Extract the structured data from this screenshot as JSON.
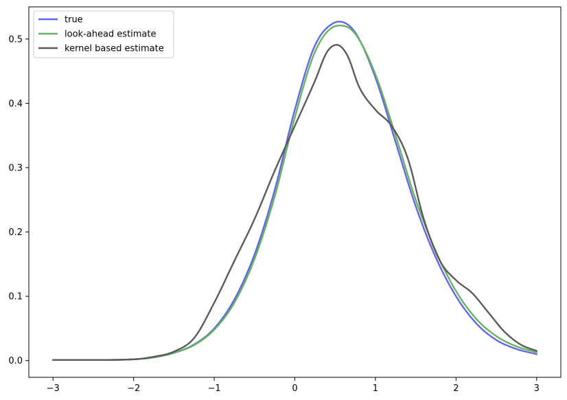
{
  "chart_data": {
    "type": "line",
    "title": "",
    "xlabel": "",
    "ylabel": "",
    "xlim": [
      -3.3,
      3.3
    ],
    "ylim": [
      -0.026,
      0.55
    ],
    "xticks": [
      -3,
      -2,
      -1,
      0,
      1,
      2,
      3
    ],
    "xtick_labels": [
      "−3",
      "−2",
      "−1",
      "0",
      "1",
      "2",
      "3"
    ],
    "yticks": [
      0.0,
      0.1,
      0.2,
      0.3,
      0.4,
      0.5
    ],
    "ytick_labels": [
      "0.0",
      "0.1",
      "0.2",
      "0.3",
      "0.4",
      "0.5"
    ],
    "grid": false,
    "legend_position": "top-left",
    "series": [
      {
        "name": "true",
        "color": "#6464e6",
        "x": [
          -3.0,
          -2.5,
          -2.0,
          -1.75,
          -1.5,
          -1.25,
          -1.0,
          -0.75,
          -0.5,
          -0.25,
          0.0,
          0.25,
          0.5,
          0.55,
          0.75,
          1.0,
          1.25,
          1.5,
          1.75,
          2.0,
          2.25,
          2.5,
          2.75,
          3.0
        ],
        "y": [
          0.001,
          0.001,
          0.002,
          0.005,
          0.012,
          0.025,
          0.05,
          0.095,
          0.165,
          0.265,
          0.39,
          0.49,
          0.526,
          0.527,
          0.51,
          0.44,
          0.34,
          0.24,
          0.16,
          0.1,
          0.058,
          0.032,
          0.018,
          0.01
        ]
      },
      {
        "name": "look-ahead estimate",
        "color": "#64b464",
        "x": [
          -3.0,
          -2.5,
          -2.0,
          -1.75,
          -1.5,
          -1.25,
          -1.0,
          -0.75,
          -0.5,
          -0.25,
          0.0,
          0.25,
          0.5,
          0.57,
          0.75,
          1.0,
          1.25,
          1.5,
          1.75,
          2.0,
          2.25,
          2.5,
          2.75,
          3.0
        ],
        "y": [
          0.001,
          0.001,
          0.002,
          0.005,
          0.012,
          0.024,
          0.048,
          0.09,
          0.158,
          0.255,
          0.378,
          0.48,
          0.52,
          0.521,
          0.508,
          0.445,
          0.35,
          0.25,
          0.17,
          0.108,
          0.065,
          0.038,
          0.022,
          0.013
        ]
      },
      {
        "name": "kernel based estimate",
        "color": "#5a5a5a",
        "x": [
          -3.0,
          -2.5,
          -2.0,
          -1.75,
          -1.5,
          -1.25,
          -1.0,
          -0.75,
          -0.5,
          -0.25,
          0.0,
          0.25,
          0.4,
          0.52,
          0.65,
          0.8,
          1.0,
          1.2,
          1.4,
          1.6,
          1.8,
          2.0,
          2.2,
          2.4,
          2.6,
          2.8,
          3.0
        ],
        "y": [
          0.001,
          0.001,
          0.002,
          0.006,
          0.014,
          0.035,
          0.09,
          0.155,
          0.22,
          0.295,
          0.365,
          0.435,
          0.48,
          0.491,
          0.475,
          0.425,
          0.39,
          0.365,
          0.315,
          0.22,
          0.155,
          0.125,
          0.105,
          0.075,
          0.045,
          0.025,
          0.015
        ]
      }
    ]
  }
}
